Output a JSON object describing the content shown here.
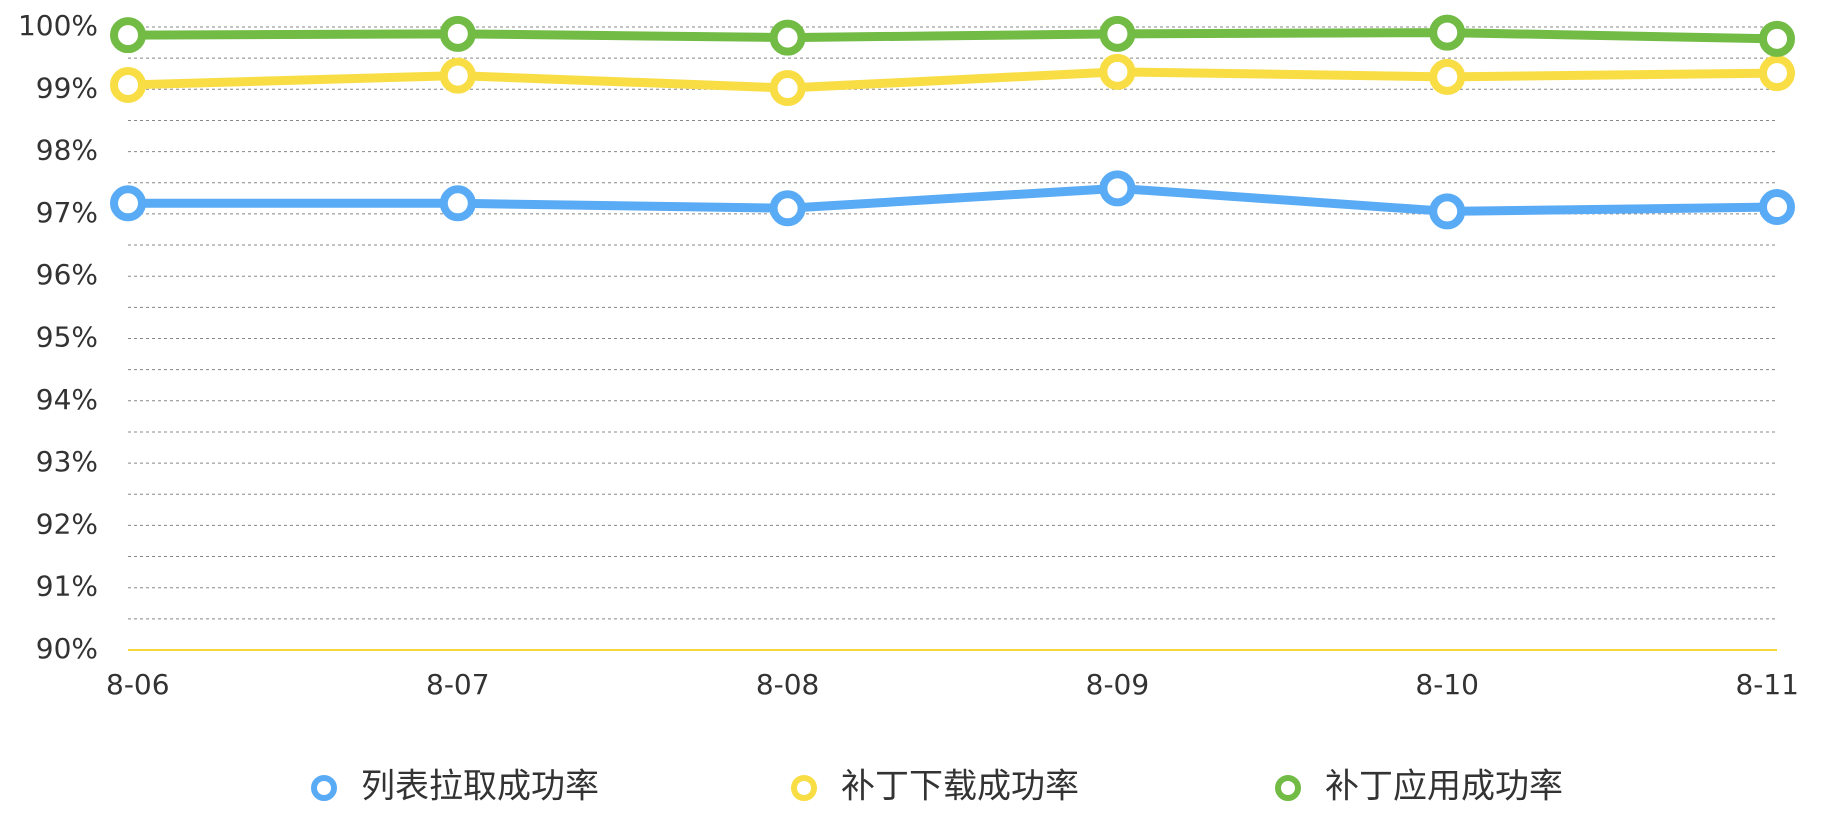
{
  "chart_data": {
    "type": "line",
    "categories": [
      "8-06",
      "8-07",
      "8-08",
      "8-09",
      "8-10",
      "8-11"
    ],
    "series": [
      {
        "name": "列表拉取成功率",
        "color": "#5aabf5",
        "values": [
          97.17,
          97.17,
          97.09,
          97.41,
          97.04,
          97.11
        ]
      },
      {
        "name": "补丁下载成功率",
        "color": "#f9dd44",
        "values": [
          99.07,
          99.22,
          99.02,
          99.28,
          99.2,
          99.26
        ]
      },
      {
        "name": "补丁应用成功率",
        "color": "#72bb45",
        "values": [
          99.87,
          99.89,
          99.83,
          99.89,
          99.91,
          99.81
        ]
      }
    ],
    "ylim": [
      90,
      100
    ],
    "yticks": [
      {
        "value": 90,
        "label": "90%"
      },
      {
        "value": 91,
        "label": "91%"
      },
      {
        "value": 92,
        "label": "92%"
      },
      {
        "value": 93,
        "label": "93%"
      },
      {
        "value": 94,
        "label": "94%"
      },
      {
        "value": 95,
        "label": "95%"
      },
      {
        "value": 96,
        "label": "96%"
      },
      {
        "value": 97,
        "label": "97%"
      },
      {
        "value": 98,
        "label": "98%"
      },
      {
        "value": 99,
        "label": "99%"
      },
      {
        "value": 100,
        "label": "100%"
      }
    ],
    "yminorticks": [
      90.5,
      91.5,
      92.5,
      93.5,
      94.5,
      95.5,
      96.5,
      97.5,
      98.5,
      99.5
    ],
    "grid": true,
    "axis_color": "#f5d83a",
    "legend": "bottom"
  }
}
